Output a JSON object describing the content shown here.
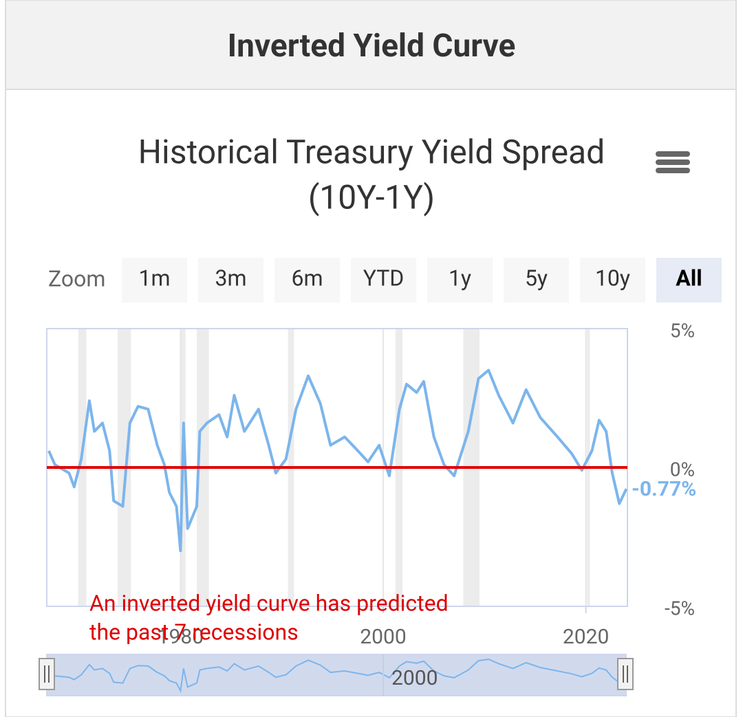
{
  "header": {
    "title": "Inverted Yield Curve"
  },
  "zoom": {
    "label": "Zoom",
    "buttons": [
      "1m",
      "3m",
      "6m",
      "YTD",
      "1y",
      "5y",
      "10y",
      "All"
    ],
    "selected": 7
  },
  "chart_data": {
    "type": "line",
    "title": [
      "Historical Treasury Yield Spread",
      "(10Y-1Y)"
    ],
    "annotation": [
      "An inverted yield curve has predicted",
      "the past 7 recessions"
    ],
    "x": [
      1967.0,
      1967.6,
      1969.0,
      1969.5,
      1970.2,
      1971.0,
      1971.5,
      1972.3,
      1973.0,
      1973.4,
      1974.3,
      1975.0,
      1975.8,
      1976.8,
      1977.7,
      1978.4,
      1978.9,
      1979.6,
      1980.0,
      1980.3,
      1980.7,
      1981.6,
      1981.9,
      1982.6,
      1983.8,
      1984.6,
      1985.3,
      1986.3,
      1987.7,
      1988.7,
      1989.4,
      1990.4,
      1991.4,
      1992.6,
      1993.8,
      1994.8,
      1996.2,
      1997.5,
      1998.5,
      1999.6,
      2000.6,
      2001.6,
      2002.3,
      2003.3,
      2004.0,
      2005.0,
      2006.0,
      2007.0,
      2008.4,
      2009.4,
      2010.4,
      2011.4,
      2012.8,
      2014.1,
      2015.5,
      2017.2,
      2018.6,
      2019.6,
      2020.6,
      2021.3,
      2022.0,
      2022.6,
      2023.3,
      2024.0
    ],
    "series": [
      {
        "color": "#7cb5ec",
        "values": [
          0.6,
          0.1,
          -0.2,
          -0.7,
          0.3,
          2.4,
          1.3,
          1.6,
          0.6,
          -1.2,
          -1.4,
          1.6,
          2.2,
          2.1,
          0.8,
          0.1,
          -0.9,
          -1.4,
          -3.0,
          1.6,
          -2.2,
          -1.4,
          1.3,
          1.6,
          1.9,
          1.1,
          2.6,
          1.3,
          2.1,
          0.8,
          -0.2,
          0.3,
          2.1,
          3.3,
          2.3,
          0.8,
          1.1,
          0.6,
          0.2,
          0.8,
          -0.3,
          2.1,
          3.0,
          2.7,
          3.1,
          1.1,
          0.1,
          -0.3,
          1.3,
          3.2,
          3.5,
          2.6,
          1.6,
          2.8,
          1.8,
          1.1,
          0.5,
          -0.1,
          0.6,
          1.7,
          1.3,
          -0.2,
          -1.3,
          -0.77
        ]
      }
    ],
    "last_value_label": "-0.77%",
    "threshold": {
      "value": 0,
      "color": "#e00000"
    },
    "plot_bands": [
      {
        "from": 1969.9,
        "to": 1970.7
      },
      {
        "from": 1973.8,
        "to": 1975.1
      },
      {
        "from": 1980.0,
        "to": 1980.5
      },
      {
        "from": 1981.6,
        "to": 1982.8
      },
      {
        "from": 1990.6,
        "to": 1991.2
      },
      {
        "from": 2001.2,
        "to": 2001.9
      },
      {
        "from": 2007.9,
        "to": 2009.5
      },
      {
        "from": 2020.1,
        "to": 2020.4
      }
    ],
    "xlim": [
      1966.8,
      2024.1
    ],
    "xticks": [
      1980,
      2000,
      2020
    ],
    "ylim": [
      -5,
      5
    ],
    "yticks": [
      {
        "value": 5,
        "label": "5%"
      },
      {
        "value": 0,
        "label": "0%"
      },
      {
        "value": -5,
        "label": "-5%"
      }
    ],
    "grid": true
  }
}
